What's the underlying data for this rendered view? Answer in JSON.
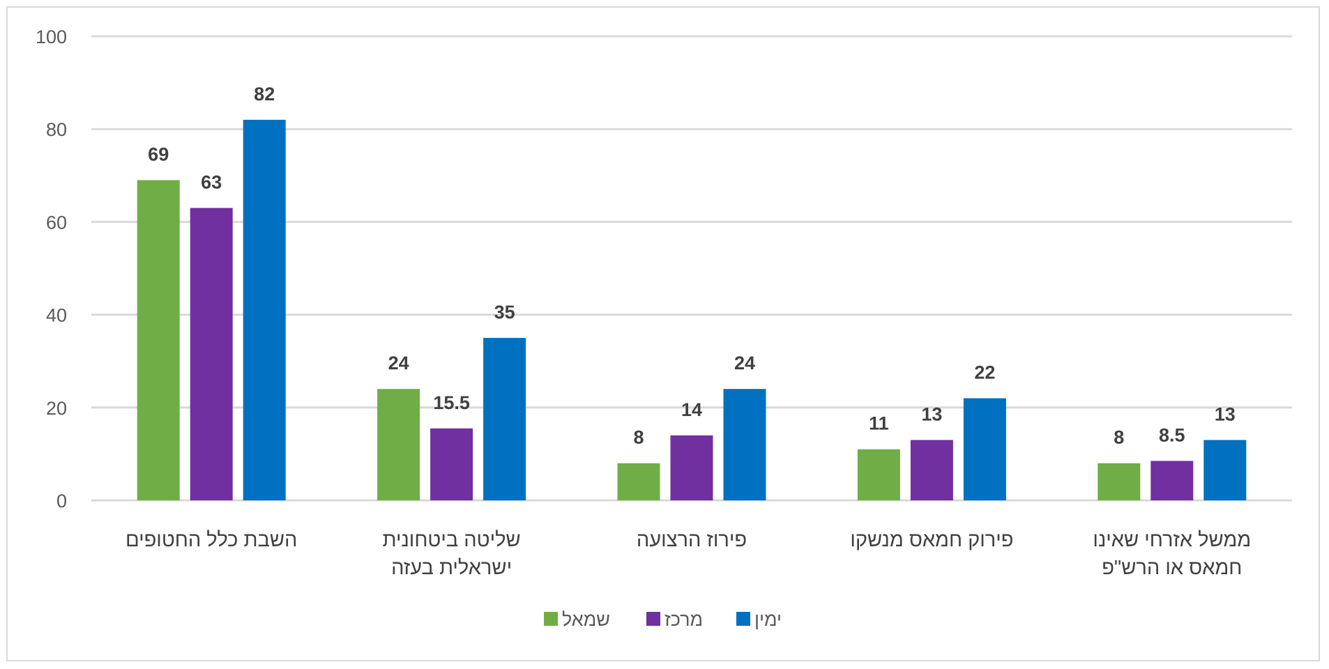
{
  "chart_data": {
    "type": "bar",
    "title": "",
    "xlabel": "",
    "ylabel": "",
    "ylim": [
      0,
      100
    ],
    "yticks": [
      0,
      20,
      40,
      60,
      80,
      100
    ],
    "grid": true,
    "legend_position": "bottom",
    "categories": [
      [
        "השבת כלל החטופים"
      ],
      [
        "שליטה ביטחונית",
        "ישראלית בעזה"
      ],
      [
        "פירוז הרצועה"
      ],
      [
        "פירוק חמאס מנשקו"
      ],
      [
        "ממשל אזרחי שאינו",
        "חמאס או הרש\"פ"
      ]
    ],
    "series": [
      {
        "name": "שמאל",
        "color": "#70ad47",
        "values": [
          69,
          24,
          8,
          11,
          8
        ]
      },
      {
        "name": "מרכז",
        "color": "#7030a0",
        "values": [
          63,
          15.5,
          14,
          13,
          8.5
        ]
      },
      {
        "name": "ימין",
        "color": "#0070c0",
        "values": [
          82,
          35,
          24,
          22,
          13
        ]
      }
    ]
  }
}
